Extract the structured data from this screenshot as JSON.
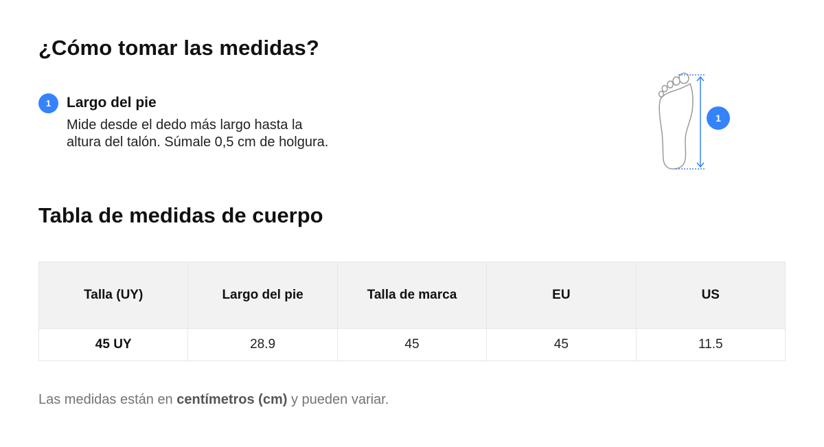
{
  "header": {
    "title": "¿Cómo tomar las medidas?"
  },
  "step": {
    "number": "1",
    "title": "Largo del pie",
    "description_line1": "Mide desde el dedo más largo hasta la",
    "description_line2": "altura del talón. Súmale 0,5 cm de holgura."
  },
  "figure": {
    "badge": "1",
    "accent_color": "#3483fa",
    "icon": "foot-outline-icon"
  },
  "table_section": {
    "title": "Tabla de medidas de cuerpo",
    "columns": [
      "Talla (UY)",
      "Largo del pie",
      "Talla de marca",
      "EU",
      "US"
    ],
    "rows": [
      [
        "45 UY",
        "28.9",
        "45",
        "45",
        "11.5"
      ]
    ]
  },
  "note": {
    "prefix": "Las medidas están en ",
    "emphasis": "centímetros (cm)",
    "suffix": " y pueden variar."
  }
}
